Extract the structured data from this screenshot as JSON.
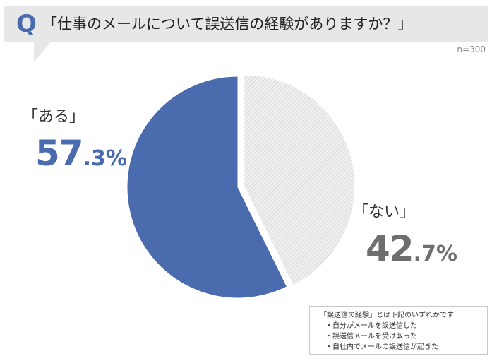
{
  "header": {
    "q_mark": "Q",
    "question": "「仕事のメールについて誤送信の経験がありますか？」"
  },
  "sample_size": "n=300",
  "labels": {
    "yes": "「ある」",
    "no": "「ない」"
  },
  "percent_text": {
    "yes_int": "57",
    "yes_dec": ".3%",
    "no_int": "42",
    "no_dec": ".7%"
  },
  "colors": {
    "yes": "#4a6bad",
    "no": "#e2e2e2",
    "header_bg": "#e7e7e7"
  },
  "note": {
    "title": "「誤送信の経験」とは下記のいずれかです",
    "items": [
      "・自分がメールを誤送信した",
      "・誤送信メールを受け取った",
      "・自社内でメールの誤送信が起きた"
    ]
  },
  "chart_data": {
    "type": "pie",
    "title": "「仕事のメールについて誤送信の経験がありますか？」",
    "categories": [
      "「ある」",
      "「ない」"
    ],
    "values": [
      57.3,
      42.7
    ],
    "unit": "%",
    "n": 300,
    "colors": [
      "#4a6bad",
      "#e2e2e2"
    ],
    "exploded": "「ない」",
    "legend": "none"
  }
}
